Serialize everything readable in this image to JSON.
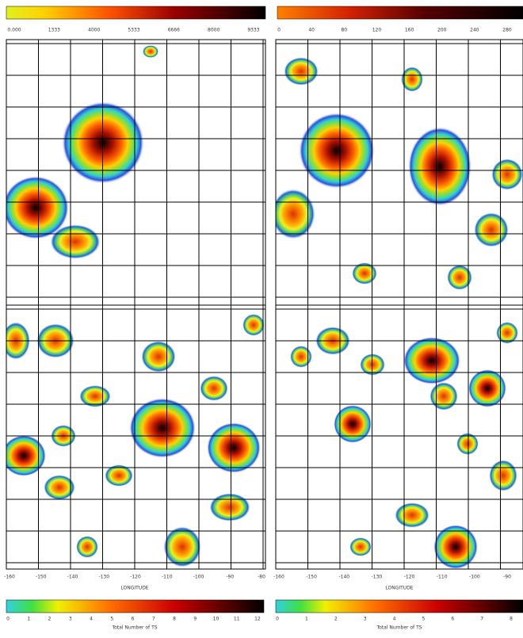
{
  "top_left": {
    "colorbar_ticks": [
      "0.000",
      "1333",
      "4000",
      "5333",
      "6666",
      "8000",
      "9333"
    ]
  },
  "top_right": {
    "colorbar_ticks": [
      "0",
      "40",
      "80",
      "120",
      "160",
      "200",
      "240",
      "280"
    ]
  },
  "bottom_left": {
    "x_ticks": [
      "-160",
      "-150",
      "-140",
      "-130",
      "-120",
      "-110",
      "-100",
      "-90",
      "-80"
    ],
    "x_label": "LONGITUDE",
    "colorbar_ticks": [
      "0",
      "1",
      "2",
      "3",
      "4",
      "5",
      "6",
      "7",
      "8",
      "9",
      "10",
      "11",
      "12"
    ],
    "colorbar_label": "Total Number of TS"
  },
  "bottom_right": {
    "x_ticks": [
      "-160",
      "-150",
      "-140",
      "-130",
      "-120",
      "-110",
      "-100",
      "-90"
    ],
    "x_label": "LONGITUDE",
    "colorbar_ticks": [
      "0",
      "1",
      "2",
      "3",
      "4",
      "5",
      "6",
      "7",
      "8"
    ],
    "colorbar_label": "Total Number of TS"
  }
}
